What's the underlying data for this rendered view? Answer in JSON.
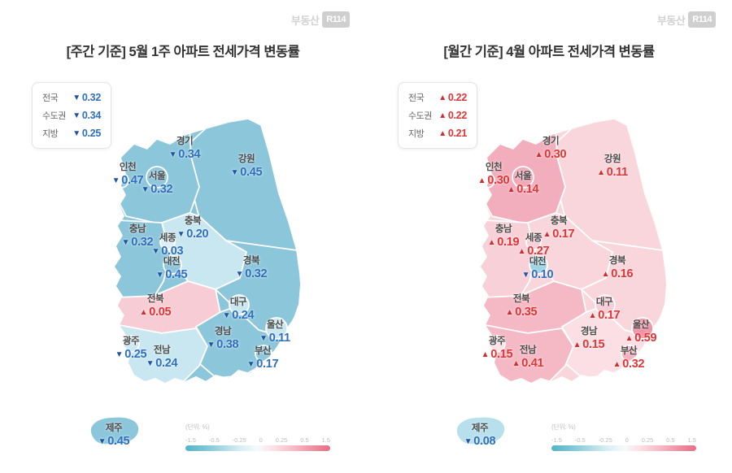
{
  "logo": {
    "prefix": "부동산",
    "badge": "R114"
  },
  "scale": {
    "unit_label": "(단위: %)",
    "ticks": [
      "-1.5",
      "-0.5",
      "-0.25",
      "0",
      "0.25",
      "0.5",
      "1.5"
    ]
  },
  "left_map": {
    "title": "[주간 기준] 5월 1주 아파트 전세가격 변동률",
    "base_fill": "#8cc6da",
    "legend": {
      "rows": [
        {
          "label": "전국",
          "glyph": "▼",
          "value": "0.32",
          "trend": "down"
        },
        {
          "label": "수도권",
          "glyph": "▼",
          "value": "0.34",
          "trend": "down"
        },
        {
          "label": "지방",
          "glyph": "▼",
          "value": "0.25",
          "trend": "down"
        }
      ]
    }
  },
  "right_map": {
    "title": "[월간 기준] 4월 아파트 전세가격 변동률",
    "base_fill": "#f9d6dc",
    "legend": {
      "rows": [
        {
          "label": "전국",
          "glyph": "▲",
          "value": "0.22",
          "trend": "up"
        },
        {
          "label": "수도권",
          "glyph": "▲",
          "value": "0.22",
          "trend": "up"
        },
        {
          "label": "지방",
          "glyph": "▲",
          "value": "0.21",
          "trend": "up"
        }
      ]
    }
  },
  "regions": [
    {
      "id": "gyeonggi",
      "name": "경기",
      "left": {
        "glyph": "▼",
        "value": "0.34",
        "trend": "down",
        "fill": "#8cc6da"
      },
      "right": {
        "glyph": "▲",
        "value": "0.30",
        "trend": "up",
        "fill": "#f2aebd"
      }
    },
    {
      "id": "gangwon",
      "name": "강원",
      "left": {
        "glyph": "▼",
        "value": "0.45",
        "trend": "down",
        "fill": "#8cc6da"
      },
      "right": {
        "glyph": "▲",
        "value": "0.11",
        "trend": "up",
        "fill": "#f9d6dc"
      }
    },
    {
      "id": "incheon",
      "name": "인천",
      "left": {
        "glyph": "▼",
        "value": "0.47",
        "trend": "down",
        "fill": "#8cc6da"
      },
      "right": {
        "glyph": "▲",
        "value": "0.30",
        "trend": "up",
        "fill": "#f2aebd"
      }
    },
    {
      "id": "seoul",
      "name": "서울",
      "left": {
        "glyph": "▼",
        "value": "0.32",
        "trend": "down",
        "fill": "#8cc6da"
      },
      "right": {
        "glyph": "▲",
        "value": "0.14",
        "trend": "up",
        "fill": "#f0a8b8"
      }
    },
    {
      "id": "chungnam",
      "name": "충남",
      "left": {
        "glyph": "▼",
        "value": "0.32",
        "trend": "down",
        "fill": "#8cc6da"
      },
      "right": {
        "glyph": "▲",
        "value": "0.19",
        "trend": "up",
        "fill": "#f8d0d8"
      }
    },
    {
      "id": "chungbuk",
      "name": "충북",
      "left": {
        "glyph": "▼",
        "value": "0.20",
        "trend": "down",
        "fill": "#c9e7f0"
      },
      "right": {
        "glyph": "▲",
        "value": "0.17",
        "trend": "up",
        "fill": "#f9d6dc"
      }
    },
    {
      "id": "sejong",
      "name": "세종",
      "left": {
        "glyph": "▼",
        "value": "0.03",
        "trend": "down",
        "fill": "#ddeff6"
      },
      "right": {
        "glyph": "▲",
        "value": "0.27",
        "trend": "up",
        "fill": "#f8d0d8"
      }
    },
    {
      "id": "daejeon",
      "name": "대전",
      "left": {
        "glyph": "▼",
        "value": "0.45",
        "trend": "down",
        "fill": "#8cc6da"
      },
      "right": {
        "glyph": "▼",
        "value": "0.10",
        "trend": "down",
        "fill": "#9ed3e3"
      }
    },
    {
      "id": "gyeongbuk",
      "name": "경북",
      "left": {
        "glyph": "▼",
        "value": "0.32",
        "trend": "down",
        "fill": "#8cc6da"
      },
      "right": {
        "glyph": "▲",
        "value": "0.16",
        "trend": "up",
        "fill": "#f9d6dc"
      }
    },
    {
      "id": "jeonbuk",
      "name": "전북",
      "left": {
        "glyph": "▲",
        "value": "0.05",
        "trend": "up",
        "fill": "#f8ccd5"
      },
      "right": {
        "glyph": "▲",
        "value": "0.35",
        "trend": "up",
        "fill": "#f5b9c5"
      }
    },
    {
      "id": "daegu",
      "name": "대구",
      "left": {
        "glyph": "▼",
        "value": "0.24",
        "trend": "down",
        "fill": "#c9e7f0"
      },
      "right": {
        "glyph": "▲",
        "value": "0.17",
        "trend": "up",
        "fill": "#f8cdd6"
      }
    },
    {
      "id": "gyeongnam",
      "name": "경남",
      "left": {
        "glyph": "▼",
        "value": "0.38",
        "trend": "down",
        "fill": "#8cc6da"
      },
      "right": {
        "glyph": "▲",
        "value": "0.15",
        "trend": "up",
        "fill": "#fbdfe4"
      }
    },
    {
      "id": "ulsan",
      "name": "울산",
      "left": {
        "glyph": "▼",
        "value": "0.11",
        "trend": "down",
        "fill": "#c9e7f0"
      },
      "right": {
        "glyph": "▲",
        "value": "0.59",
        "trend": "up",
        "fill": "#ee93a5"
      }
    },
    {
      "id": "gwangju",
      "name": "광주",
      "left": {
        "glyph": "▼",
        "value": "0.25",
        "trend": "down",
        "fill": "#cfe9f1"
      },
      "right": {
        "glyph": "▲",
        "value": "0.15",
        "trend": "up",
        "fill": "#fbe2e7"
      }
    },
    {
      "id": "jeonnam",
      "name": "전남",
      "left": {
        "glyph": "▼",
        "value": "0.24",
        "trend": "down",
        "fill": "#c9e7f0"
      },
      "right": {
        "glyph": "▲",
        "value": "0.41",
        "trend": "up",
        "fill": "#f5b9c5"
      }
    },
    {
      "id": "busan",
      "name": "부산",
      "left": {
        "glyph": "▼",
        "value": "0.17",
        "trend": "down",
        "fill": "#8cc6da"
      },
      "right": {
        "glyph": "▲",
        "value": "0.32",
        "trend": "up",
        "fill": "#f3b1c0"
      }
    },
    {
      "id": "jeju",
      "name": "제주",
      "left": {
        "glyph": "▼",
        "value": "0.45",
        "trend": "down",
        "fill": "#8cc6da"
      },
      "right": {
        "glyph": "▼",
        "value": "0.08",
        "trend": "down",
        "fill": "#b7dfec"
      }
    }
  ]
}
